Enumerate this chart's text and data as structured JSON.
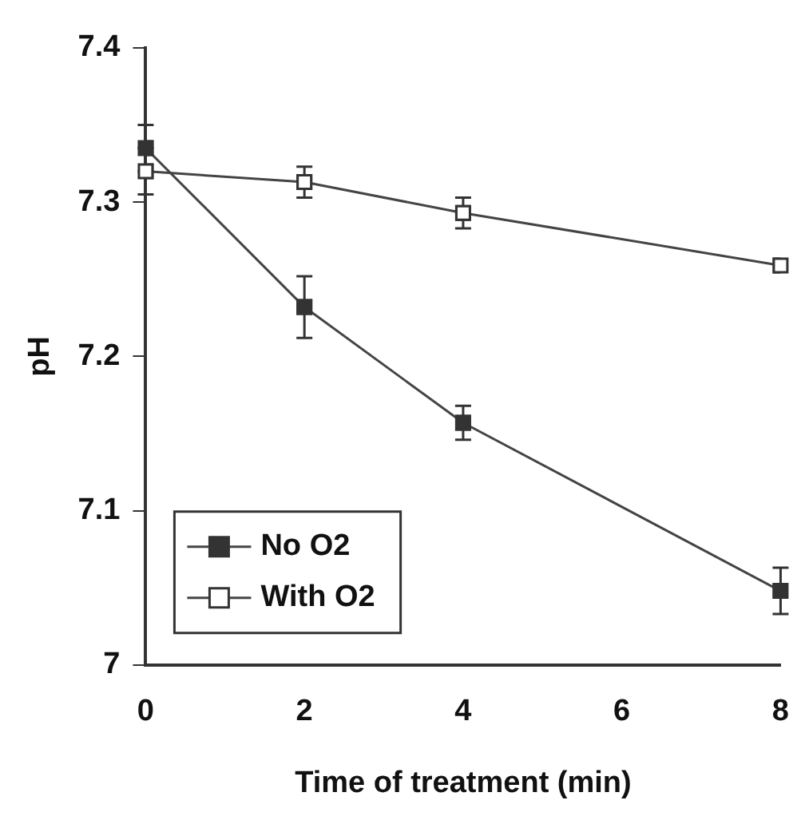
{
  "chart_data": {
    "type": "line",
    "xlabel": "Time of treatment (min)",
    "ylabel": "pH",
    "x": [
      0,
      2,
      4,
      8
    ],
    "series": [
      {
        "name": "No O2",
        "color": "#333333",
        "values": [
          7.335,
          7.232,
          7.157,
          7.048
        ],
        "errors": [
          0.015,
          0.02,
          0.011,
          0.015
        ]
      },
      {
        "name": "With O2",
        "color": "#ffffff",
        "values": [
          7.32,
          7.313,
          7.293,
          7.259
        ],
        "errors": [
          0.015,
          0.01,
          0.01,
          null
        ]
      }
    ],
    "xlim": [
      0,
      8
    ],
    "xticks": [
      0,
      2,
      4,
      6,
      8
    ],
    "ylim": [
      7,
      7.4
    ],
    "yticks": [
      7,
      7.1,
      7.2,
      7.3,
      7.4
    ],
    "grid": false,
    "legend": "bottom left",
    "marker": "square",
    "line_style": "solid"
  }
}
